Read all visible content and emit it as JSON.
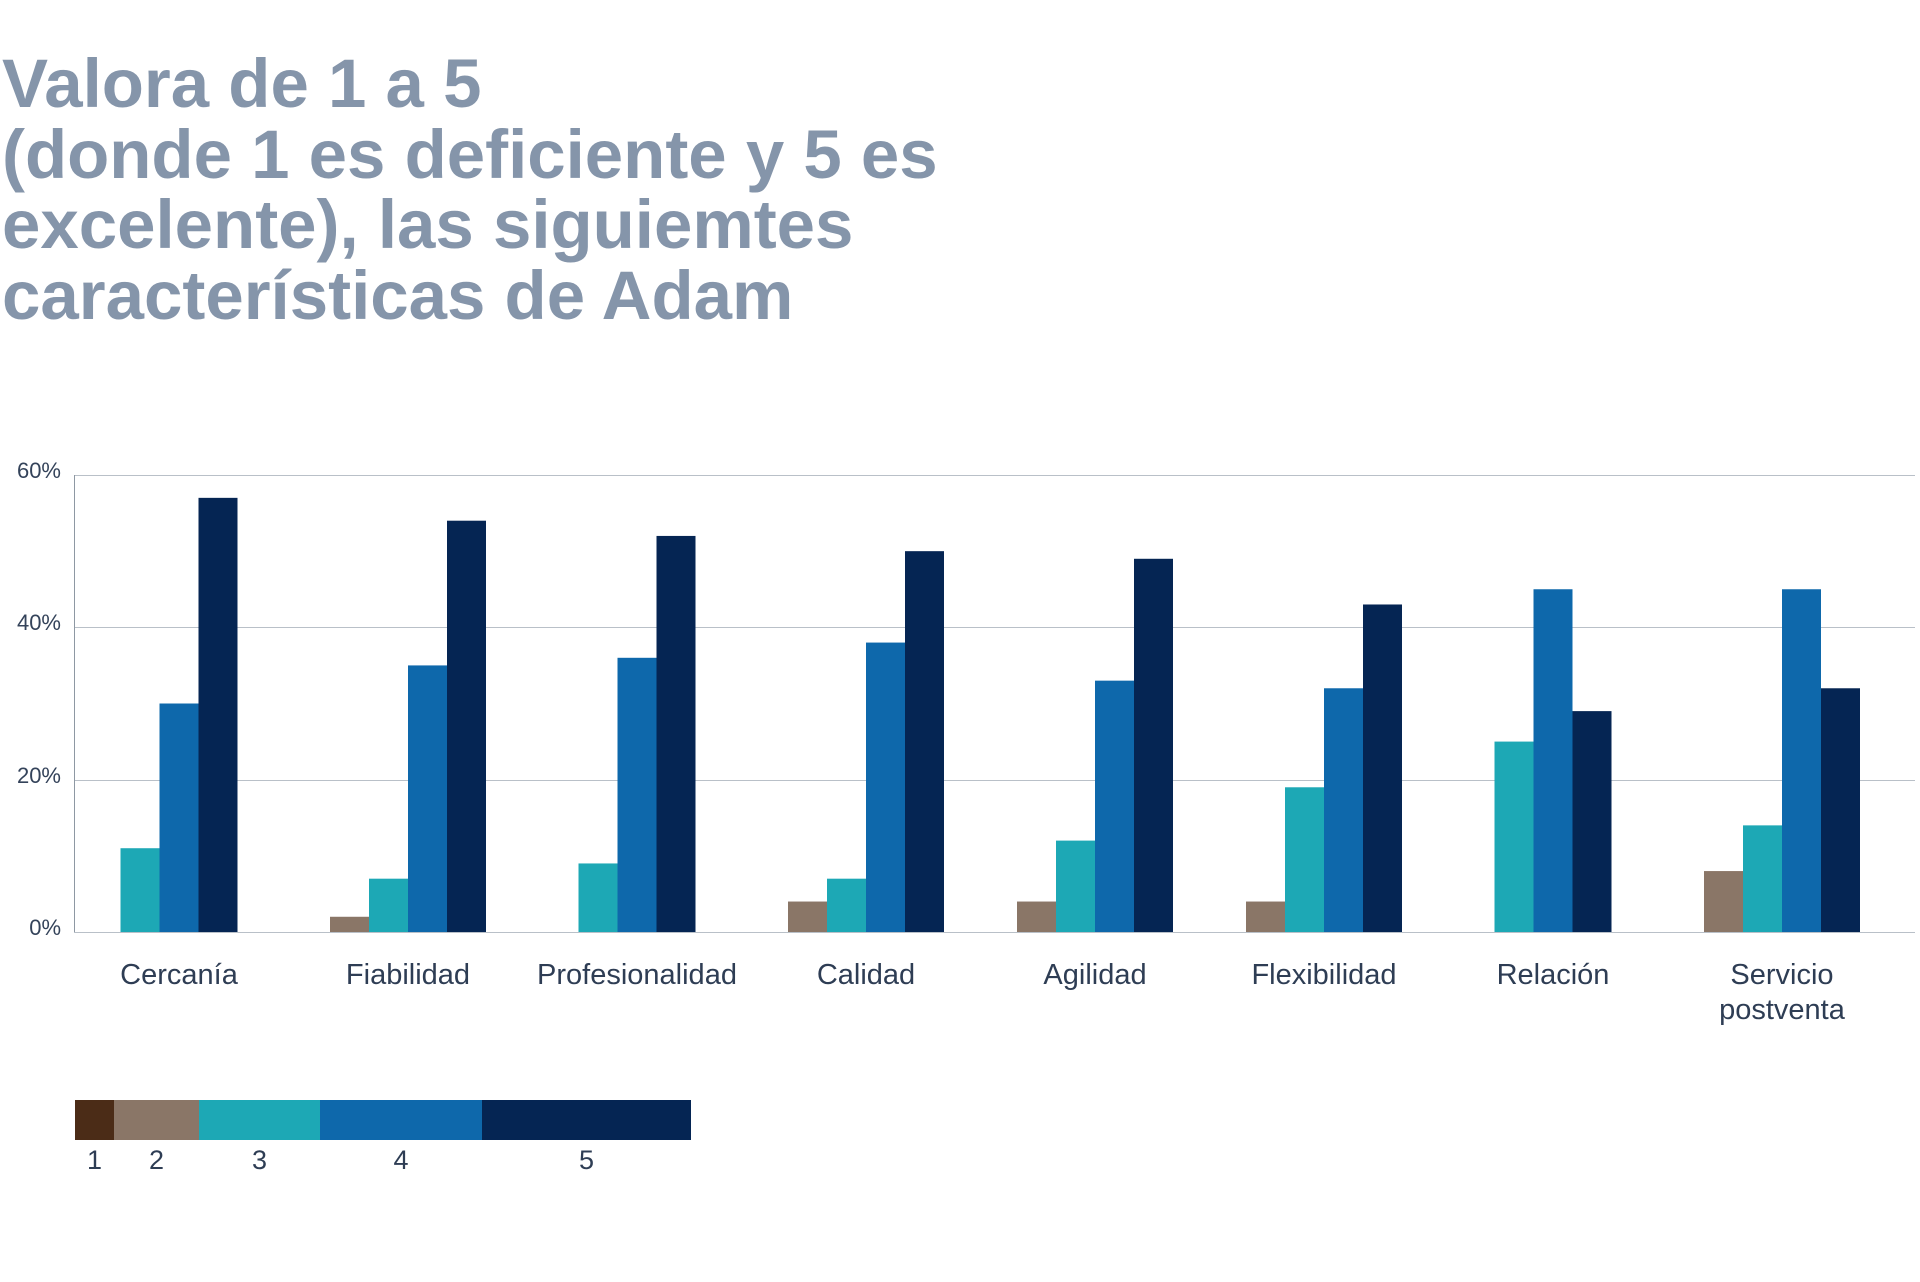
{
  "chart_data": {
    "type": "bar",
    "title": "Valora de 1 a 5\n(donde 1 es deficiente y 5 es\nexcelente), las siguiemtes\ncaracterísticas de Adam",
    "categories": [
      "Cercanía",
      "Fiabilidad",
      "Profesionalidad",
      "Calidad",
      "Agilidad",
      "Flexibilidad",
      "Relación",
      "Servicio postventa"
    ],
    "series": [
      {
        "name": "1",
        "color": "#4b2c17",
        "values": [
          0,
          0,
          0,
          0,
          0,
          0,
          0,
          0
        ]
      },
      {
        "name": "2",
        "color": "#8a7667",
        "values": [
          0,
          2,
          0,
          4,
          4,
          4,
          0,
          8
        ]
      },
      {
        "name": "3",
        "color": "#1da8b5",
        "values": [
          11,
          7,
          9,
          7,
          12,
          19,
          25,
          14
        ]
      },
      {
        "name": "4",
        "color": "#0e68ab",
        "values": [
          30,
          35,
          36,
          38,
          33,
          32,
          45,
          45
        ]
      },
      {
        "name": "5",
        "color": "#052553",
        "values": [
          57,
          54,
          52,
          50,
          49,
          43,
          29,
          32
        ]
      }
    ],
    "ylim": [
      0,
      60
    ],
    "yticks": [
      0,
      20,
      40,
      60
    ],
    "ytick_labels": [
      "0%",
      "20%",
      "40%",
      "60%"
    ],
    "grid": true,
    "legend_position": "bottom-left"
  },
  "colors": {
    "title": "#8595aa",
    "text": "#2e3d54",
    "grid": "#b9c0c8",
    "axis": "#8e98a3"
  }
}
